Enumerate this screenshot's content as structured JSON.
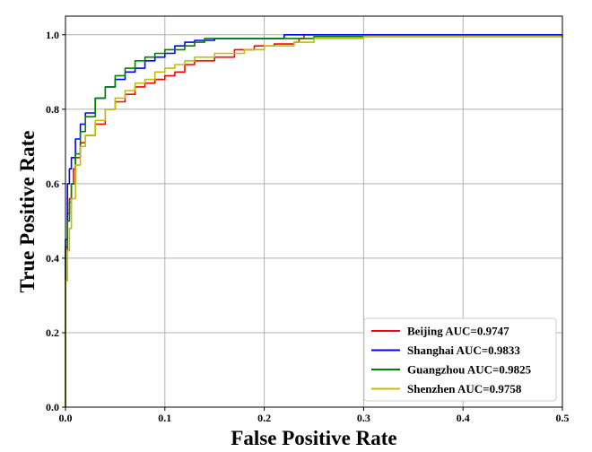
{
  "chart_data": {
    "type": "line",
    "title": "",
    "xlabel": "False Positive Rate",
    "ylabel": "True Positive Rate",
    "xlim": [
      0,
      0.5
    ],
    "ylim": [
      0,
      1.05
    ],
    "x_ticks": [
      "0.0",
      "0.1",
      "0.2",
      "0.3",
      "0.4",
      "0.5"
    ],
    "y_ticks": [
      "0.0",
      "0.2",
      "0.4",
      "0.6",
      "0.8",
      "1.0"
    ],
    "x_tick_values": [
      0,
      0.1,
      0.2,
      0.3,
      0.4,
      0.5
    ],
    "y_tick_values": [
      0,
      0.2,
      0.4,
      0.6,
      0.8,
      1.0
    ],
    "grid": true,
    "legend_position": "bottom-right",
    "series": [
      {
        "name": "Beijing AUC=0.9747",
        "color": "#ff0000",
        "x": [
          0,
          0,
          0.002,
          0.004,
          0.006,
          0.008,
          0.01,
          0.015,
          0.02,
          0.03,
          0.04,
          0.05,
          0.06,
          0.07,
          0.08,
          0.09,
          0.1,
          0.11,
          0.12,
          0.13,
          0.15,
          0.17,
          0.19,
          0.21,
          0.23,
          0.235,
          0.24,
          0.5
        ],
        "y": [
          0,
          0.34,
          0.52,
          0.56,
          0.6,
          0.64,
          0.67,
          0.71,
          0.73,
          0.76,
          0.8,
          0.82,
          0.84,
          0.86,
          0.87,
          0.88,
          0.89,
          0.9,
          0.92,
          0.93,
          0.94,
          0.96,
          0.97,
          0.975,
          0.98,
          0.99,
          1.0,
          1.0
        ]
      },
      {
        "name": "Shanghai AUC=0.9833",
        "color": "#0000ff",
        "x": [
          0,
          0,
          0.002,
          0.004,
          0.006,
          0.01,
          0.015,
          0.02,
          0.03,
          0.04,
          0.05,
          0.06,
          0.07,
          0.08,
          0.09,
          0.1,
          0.11,
          0.12,
          0.13,
          0.15,
          0.2,
          0.22,
          0.5
        ],
        "y": [
          0,
          0.45,
          0.6,
          0.64,
          0.67,
          0.72,
          0.76,
          0.79,
          0.83,
          0.86,
          0.88,
          0.9,
          0.91,
          0.93,
          0.94,
          0.95,
          0.97,
          0.98,
          0.985,
          0.99,
          0.99,
          1.0,
          1.0
        ]
      },
      {
        "name": "Guangzhou AUC=0.9825",
        "color": "#008000",
        "x": [
          0,
          0,
          0.002,
          0.004,
          0.006,
          0.01,
          0.015,
          0.02,
          0.03,
          0.04,
          0.05,
          0.06,
          0.07,
          0.08,
          0.09,
          0.1,
          0.11,
          0.12,
          0.13,
          0.14,
          0.2,
          0.25,
          0.28,
          0.5
        ],
        "y": [
          0,
          0.43,
          0.5,
          0.55,
          0.6,
          0.68,
          0.74,
          0.78,
          0.83,
          0.86,
          0.89,
          0.91,
          0.93,
          0.94,
          0.95,
          0.96,
          0.96,
          0.97,
          0.98,
          0.99,
          0.99,
          0.995,
          0.995,
          1.0
        ]
      },
      {
        "name": "Shenzhen AUC=0.9758",
        "color": "#bfbf00",
        "x": [
          0,
          0,
          0.002,
          0.004,
          0.006,
          0.01,
          0.015,
          0.02,
          0.03,
          0.04,
          0.05,
          0.06,
          0.07,
          0.08,
          0.09,
          0.1,
          0.11,
          0.12,
          0.13,
          0.15,
          0.18,
          0.2,
          0.23,
          0.25,
          0.3,
          0.5
        ],
        "y": [
          0,
          0.34,
          0.42,
          0.48,
          0.56,
          0.65,
          0.7,
          0.73,
          0.77,
          0.8,
          0.83,
          0.85,
          0.87,
          0.88,
          0.9,
          0.91,
          0.92,
          0.93,
          0.94,
          0.95,
          0.96,
          0.97,
          0.98,
          0.99,
          0.995,
          1.0
        ]
      }
    ]
  }
}
